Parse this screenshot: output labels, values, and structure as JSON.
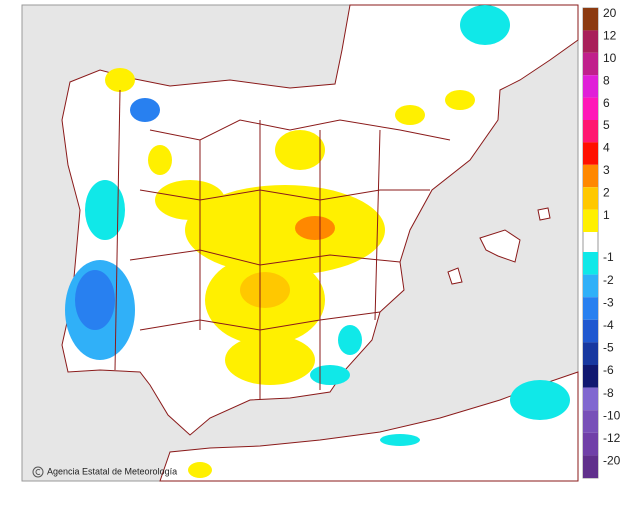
{
  "credit": "Agencia Estatal de Meteorología",
  "legend_upper": [
    {
      "label": "20",
      "color": "#8c3a10"
    },
    {
      "label": "12",
      "color": "#a8205a"
    },
    {
      "label": "10",
      "color": "#c0208c"
    },
    {
      "label": "8",
      "color": "#e020d8"
    },
    {
      "label": "6",
      "color": "#ff18b8"
    },
    {
      "label": "5",
      "color": "#ff1870"
    },
    {
      "label": "4",
      "color": "#ff1000"
    },
    {
      "label": "3",
      "color": "#ff8800"
    },
    {
      "label": "2",
      "color": "#ffc800"
    },
    {
      "label": "1",
      "color": "#fff000"
    }
  ],
  "legend_lower": [
    {
      "label": "-1",
      "color": "#10e8e8"
    },
    {
      "label": "-2",
      "color": "#30b0f8"
    },
    {
      "label": "-3",
      "color": "#2880f0"
    },
    {
      "label": "-4",
      "color": "#2058d0"
    },
    {
      "label": "-5",
      "color": "#1838a0"
    },
    {
      "label": "-6",
      "color": "#101870"
    },
    {
      "label": "-8",
      "color": "#8068d0"
    },
    {
      "label": "-10",
      "color": "#7850b8"
    },
    {
      "label": "-12",
      "color": "#7040a8"
    },
    {
      "label": "-20",
      "color": "#60308c"
    }
  ]
}
